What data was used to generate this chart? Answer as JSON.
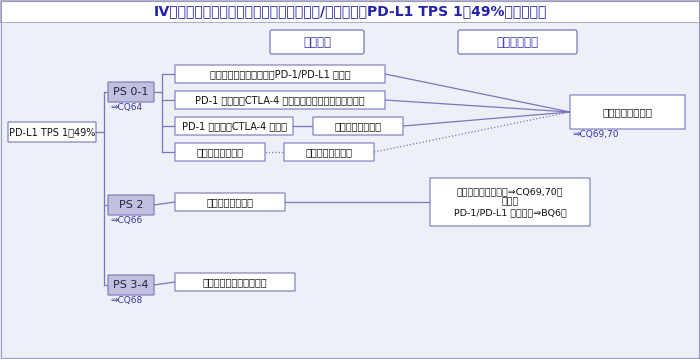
{
  "title": "Ⅳ期非小細胞肺癌：ドライバー遺伝子変異/転座陰性，PD-L1 TPS 1〜49%の治療方針",
  "title_color": "#2222aa",
  "bg_color": "#eef0f8",
  "box_edge_color": "#7777bb",
  "box_fill_ps": "#c0c0df",
  "box_fill_white": "#ffffff",
  "text_color_main": "#111111",
  "text_color_blue": "#3333aa",
  "header1_text": "一次治療",
  "header2_text": "二次治療以降",
  "node_pdl1": "PD-L1 TPS 1〜49%",
  "node_ps01": "PS 0-1",
  "node_ps01_ref": "CQ64",
  "node_ps2": "PS 2",
  "node_ps2_ref": "CQ66",
  "node_ps34": "PS 3-4",
  "node_ps34_ref": "CQ68",
  "tx1_1": "プラチナ製剤併用療法＋PD-1/PD-L1 阻害薬",
  "tx1_2": "PD-1 阻害薬＋CTLA-4 阻害薬＋プラチナ製剤併用療法",
  "tx1_3a": "PD-1 阻害薬＋CTLA-4 阻害薬",
  "tx1_3b": "細胞傷害性抗癌薬",
  "tx1_4a": "ペムブロリズマブ",
  "tx1_4b": "細胞傷害性抗癌薬",
  "tx2_ps01": "細胞傷害性抗癌薬",
  "tx2_ps01_ref": "CQ69,70",
  "tx_ps2_1st": "細胞傷害性抗癌薬",
  "tx_ps2_2nd_line1": "細胞傷害性抗癌薬（⇒CQ69,70）",
  "tx_ps2_2nd_line2": "または",
  "tx_ps2_2nd_line3": "PD-1/PD-L1 阻害薬（⇒BQ6）",
  "tx_ps34": "薬物療法は勧められない"
}
